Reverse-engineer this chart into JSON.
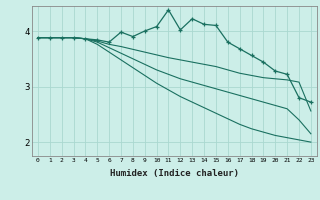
{
  "xlabel": "Humidex (Indice chaleur)",
  "ylabel": "",
  "bg_color": "#cceee8",
  "grid_color": "#aad8d0",
  "line_color": "#1a7060",
  "xlim": [
    -0.5,
    23.5
  ],
  "ylim": [
    1.75,
    4.45
  ],
  "xticks": [
    0,
    1,
    2,
    3,
    4,
    5,
    6,
    7,
    8,
    9,
    10,
    11,
    12,
    13,
    14,
    15,
    16,
    17,
    18,
    19,
    20,
    21,
    22,
    23
  ],
  "yticks": [
    2,
    3,
    4
  ],
  "series": [
    {
      "x": [
        0,
        1,
        2,
        3,
        4,
        5,
        6,
        7,
        8,
        9,
        10,
        11,
        12,
        13,
        14,
        15,
        16,
        17,
        18,
        19,
        20,
        21,
        22,
        23
      ],
      "y": [
        3.88,
        3.88,
        3.88,
        3.88,
        3.86,
        3.84,
        3.8,
        3.98,
        3.9,
        4.0,
        4.08,
        4.38,
        4.02,
        4.22,
        4.12,
        4.1,
        3.8,
        3.68,
        3.56,
        3.44,
        3.28,
        3.22,
        2.8,
        2.72
      ],
      "marker": true
    },
    {
      "x": [
        0,
        1,
        2,
        3,
        4,
        5,
        6,
        7,
        8,
        9,
        10,
        11,
        12,
        13,
        14,
        15,
        16,
        17,
        18,
        19,
        20,
        21,
        22,
        23
      ],
      "y": [
        3.88,
        3.88,
        3.88,
        3.88,
        3.86,
        3.82,
        3.76,
        3.72,
        3.67,
        3.62,
        3.57,
        3.52,
        3.48,
        3.44,
        3.4,
        3.36,
        3.3,
        3.24,
        3.2,
        3.16,
        3.14,
        3.12,
        3.08,
        2.56
      ],
      "marker": false
    },
    {
      "x": [
        0,
        1,
        2,
        3,
        4,
        5,
        6,
        7,
        8,
        9,
        10,
        11,
        12,
        13,
        14,
        15,
        16,
        17,
        18,
        19,
        20,
        21,
        22,
        23
      ],
      "y": [
        3.88,
        3.88,
        3.88,
        3.88,
        3.86,
        3.8,
        3.7,
        3.6,
        3.5,
        3.4,
        3.3,
        3.22,
        3.14,
        3.08,
        3.02,
        2.96,
        2.9,
        2.84,
        2.78,
        2.72,
        2.66,
        2.6,
        2.4,
        2.15
      ],
      "marker": false
    },
    {
      "x": [
        0,
        1,
        2,
        3,
        4,
        5,
        6,
        7,
        8,
        9,
        10,
        11,
        12,
        13,
        14,
        15,
        16,
        17,
        18,
        19,
        20,
        21,
        22,
        23
      ],
      "y": [
        3.88,
        3.88,
        3.88,
        3.88,
        3.86,
        3.76,
        3.62,
        3.48,
        3.34,
        3.2,
        3.06,
        2.94,
        2.82,
        2.72,
        2.62,
        2.52,
        2.42,
        2.32,
        2.24,
        2.18,
        2.12,
        2.08,
        2.04,
        2.0
      ],
      "marker": false
    }
  ]
}
